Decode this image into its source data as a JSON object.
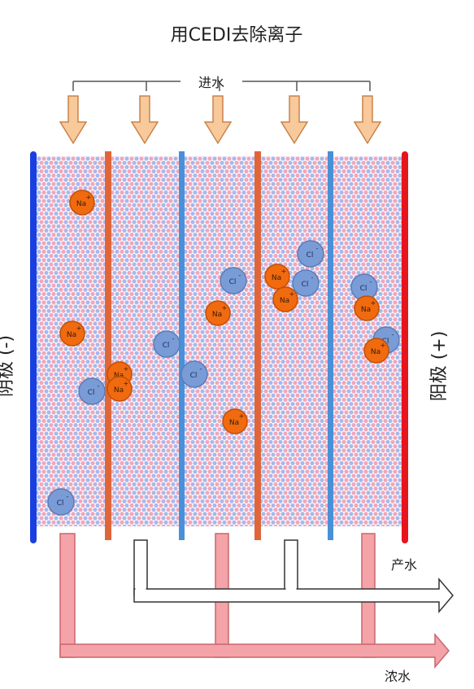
{
  "title": "用CEDI去除离子",
  "inlet_label": "进水",
  "cathode_label": "阴极 (-)",
  "anode_label": "阳极 (+)",
  "product_label": "产水",
  "concentrate_label": "浓水",
  "colors": {
    "cathode": "#1a3fe0",
    "anode": "#e8141c",
    "cation_membrane": "#e0663a",
    "anion_membrane": "#4a90d9",
    "resin_pink": "#f2a6b8",
    "resin_blue": "#a8b8ec",
    "sodium_ion": "#f06a10",
    "chloride_ion": "#7a9cd6",
    "inlet_arrow": "#f8c99a",
    "concentrate_pipe": "#f4a3a8",
    "product_pipe": "#ffffff"
  },
  "ions": {
    "sodium_label": "Na",
    "sodium_charge": "+",
    "chloride_label": "Cl",
    "chloride_charge": "-"
  }
}
